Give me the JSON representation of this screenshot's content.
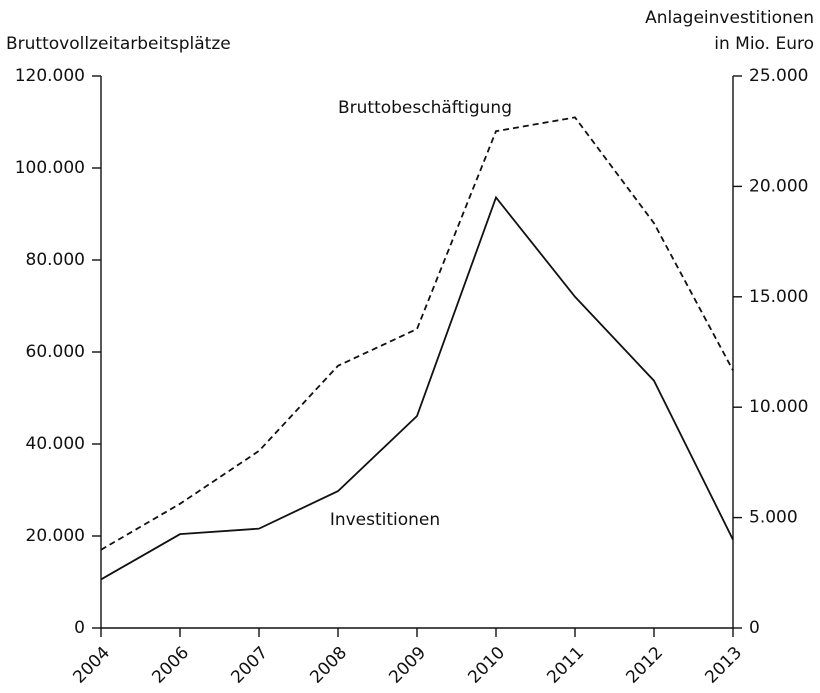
{
  "chart_data": {
    "type": "line",
    "ylabel": "Bruttovollzeitarbeitsplätze",
    "y2label": [
      "Anlageinvestitionen",
      "in Mio. Euro"
    ],
    "categories": [
      "2004",
      "2006",
      "2007",
      "2008",
      "2009",
      "2010",
      "2011",
      "2012",
      "2013"
    ],
    "series": [
      {
        "name": "Bruttobeschäftigung",
        "color": "#111111",
        "linestyle": "dashed",
        "axis": "y",
        "values": [
          17000,
          27000,
          38500,
          57000,
          65000,
          108000,
          111000,
          88000,
          56000
        ]
      },
      {
        "name": "Investitionen",
        "color": "#111111",
        "linestyle": "solid",
        "axis": "y2",
        "values": [
          2200,
          4250,
          4500,
          6200,
          9600,
          19500,
          15000,
          11200,
          4000
        ]
      }
    ],
    "ylim": [
      0,
      120000
    ],
    "yticks": [
      0,
      {
        "value": 20000,
        "label": "20.000"
      },
      {
        "value": 40000,
        "label": "40.000"
      },
      {
        "value": 60000,
        "label": "60.000"
      },
      {
        "value": 80000,
        "label": "80.000"
      },
      {
        "value": 100000,
        "label": "100.000"
      },
      {
        "value": 120000,
        "label": "120.000"
      }
    ],
    "y2lim": [
      0,
      25000
    ],
    "y2ticks": [
      0,
      {
        "value": 5000,
        "label": "5.000"
      },
      {
        "value": 10000,
        "label": "10.000"
      },
      {
        "value": 15000,
        "label": "15.000"
      },
      {
        "value": 20000,
        "label": "20.000"
      },
      {
        "value": 25000,
        "label": "25.000"
      }
    ],
    "grid": false
  }
}
